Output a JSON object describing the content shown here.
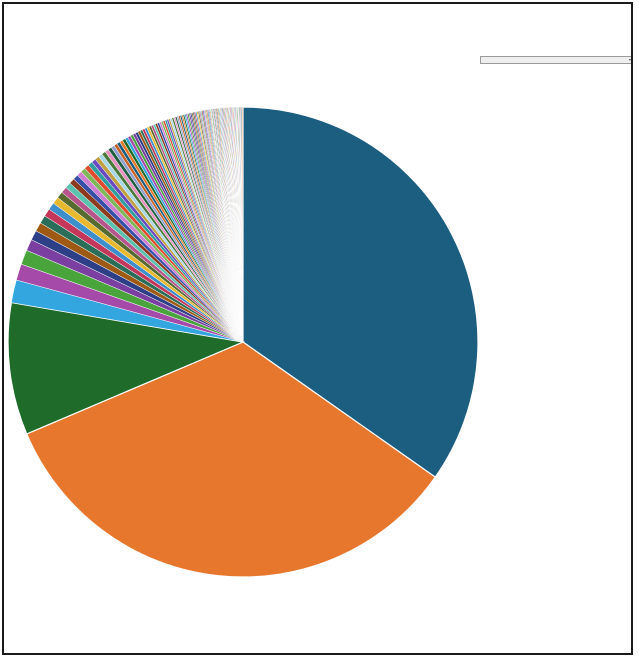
{
  "window": {
    "title": "",
    "chart_title": ""
  },
  "legend": {
    "selected_label": ""
  },
  "chart_data": {
    "type": "pie",
    "title": "",
    "start": "12 o'clock",
    "direction": "clockwise",
    "legend_placement": "right",
    "slice_border_color": "#ffffff",
    "values": [
      31.0,
      30.2,
      8.1,
      1.4,
      1.0,
      0.9,
      0.7,
      0.6,
      0.55,
      0.5,
      0.48,
      0.45,
      0.43,
      0.4,
      0.38,
      0.36,
      0.34,
      0.32,
      0.31,
      0.3,
      0.29,
      0.28,
      0.27,
      0.26,
      0.25,
      0.24,
      0.23,
      0.22,
      0.21,
      0.2,
      0.2,
      0.19,
      0.19,
      0.18,
      0.18,
      0.17,
      0.17,
      0.16,
      0.16,
      0.15,
      0.15,
      0.15,
      0.14,
      0.14,
      0.14,
      0.13,
      0.13,
      0.13,
      0.12,
      0.12,
      0.12,
      0.12,
      0.11,
      0.11,
      0.11,
      0.11,
      0.1,
      0.1,
      0.1,
      0.1,
      0.1,
      0.09,
      0.09,
      0.09,
      0.09,
      0.09,
      0.09,
      0.08,
      0.08,
      0.08,
      0.08,
      0.08,
      0.08,
      0.08,
      0.07,
      0.07,
      0.07,
      0.07,
      0.07,
      0.07,
      0.07,
      0.07,
      0.06,
      0.06,
      0.06,
      0.06,
      0.06,
      0.06,
      0.06,
      0.06,
      0.06,
      0.06,
      0.05,
      0.05,
      0.05,
      0.05,
      0.05,
      0.05,
      0.05,
      0.05,
      0.05,
      0.05,
      0.05,
      0.05,
      0.05,
      0.05,
      0.05,
      0.05,
      0.05,
      0.05,
      0.05,
      0.05,
      0.05,
      0.05,
      0.05,
      0.05,
      0.05,
      0.05,
      0.05,
      0.05,
      0.05,
      0.05
    ],
    "palette": [
      "#1b5e80",
      "#e8772e",
      "#1e6b2a",
      "#33a6e0",
      "#a54aa8",
      "#49a43c",
      "#7a3fa0",
      "#2d3f87",
      "#9e5a12",
      "#2a6e5a",
      "#c4365a",
      "#3d8fcc",
      "#e8b82e",
      "#556b2f",
      "#b8548c",
      "#5ac3b0",
      "#8c3a1e",
      "#3650a8",
      "#d07cd0",
      "#7db85a",
      "#e04a2e",
      "#2e9e9e",
      "#6a4ac0",
      "#c0a040",
      "#a8d8e8",
      "#4a7a3a",
      "#e890c0",
      "#206040",
      "#90a0d0",
      "#c86428"
    ],
    "legend_entries": [
      "",
      "",
      "",
      "",
      "",
      "",
      "",
      "",
      "",
      "",
      "",
      "",
      "",
      "",
      "",
      "",
      "",
      "",
      "",
      "",
      "",
      "",
      "",
      "",
      "",
      "",
      "",
      "",
      "",
      "",
      "",
      "",
      "",
      "",
      "",
      "",
      "",
      "",
      "",
      "",
      "",
      "",
      "",
      "",
      "",
      "",
      "",
      "",
      "",
      "",
      "",
      "",
      "",
      "",
      "",
      "",
      "",
      "",
      "",
      "",
      "",
      "",
      "",
      "",
      "",
      "",
      "",
      "",
      "",
      "",
      "",
      "",
      "",
      "",
      "",
      "",
      "",
      "",
      "",
      "",
      "",
      "",
      "",
      "",
      "",
      "",
      "",
      "",
      "",
      "",
      "",
      "",
      "",
      "",
      "",
      "",
      "",
      "",
      "",
      "",
      "",
      "",
      "",
      "",
      "",
      "",
      "",
      "",
      "",
      "",
      "",
      "",
      "",
      "",
      "",
      "",
      "",
      "",
      "",
      "",
      "",
      "",
      "",
      "",
      "",
      ""
    ]
  }
}
